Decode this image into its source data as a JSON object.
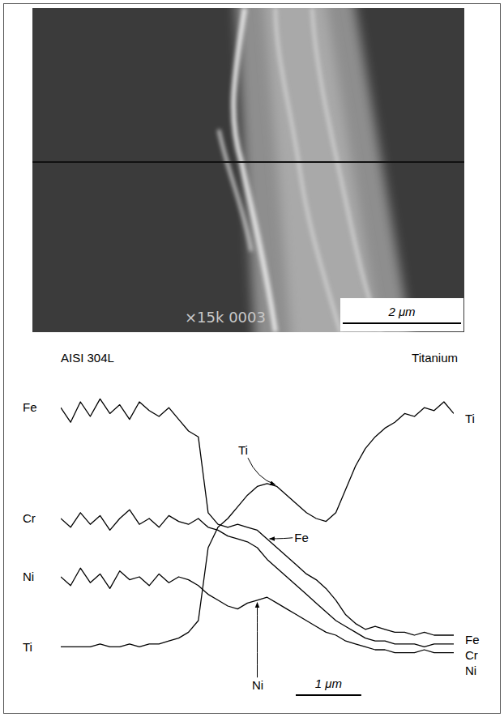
{
  "chart_data": {
    "type": "line",
    "x": [
      0,
      0.15,
      0.3,
      0.45,
      0.6,
      0.75,
      0.9,
      1.05,
      1.2,
      1.35,
      1.5,
      1.65,
      1.8,
      1.95,
      2.1,
      2.25,
      2.4,
      2.55,
      2.7,
      2.85,
      3.0,
      3.15,
      3.3,
      3.45,
      3.6,
      3.75,
      3.9,
      4.05,
      4.2,
      4.35,
      4.5,
      4.65,
      4.8,
      4.95,
      5.1,
      5.25,
      5.4,
      5.55,
      5.7,
      5.85,
      6.0
    ],
    "xlim": [
      0,
      6
    ],
    "ylim": [
      0,
      100
    ],
    "tick_labels": false,
    "series": [
      {
        "name": "Fe",
        "color": "#000000",
        "values": [
          88,
          83,
          90,
          85,
          91,
          86,
          89,
          84,
          90,
          87,
          85,
          88,
          84,
          80,
          78,
          52,
          48,
          47,
          48,
          47,
          46,
          43,
          40,
          37,
          34,
          31,
          29,
          26,
          22,
          17,
          14,
          12,
          13,
          12,
          11,
          11,
          10,
          11,
          10,
          10,
          10
        ]
      },
      {
        "name": "Cr",
        "color": "#000000",
        "values": [
          50,
          47,
          52,
          48,
          51,
          46,
          50,
          53,
          48,
          50,
          47,
          51,
          49,
          48,
          50,
          47,
          46,
          44,
          43,
          42,
          40,
          36,
          33,
          30,
          27,
          24,
          21,
          18,
          15,
          13,
          11,
          9,
          8,
          8,
          7,
          7,
          7,
          6,
          7,
          7,
          7
        ]
      },
      {
        "name": "Ni",
        "color": "#000000",
        "values": [
          30,
          27,
          33,
          28,
          31,
          26,
          32,
          29,
          30,
          27,
          31,
          28,
          30,
          29,
          27,
          24,
          22,
          20,
          19,
          21,
          22,
          23,
          21,
          19,
          17,
          15,
          13,
          11,
          10,
          8,
          7,
          6,
          5,
          5,
          4,
          4,
          4,
          5,
          4,
          4,
          4
        ]
      },
      {
        "name": "Ti",
        "color": "#000000",
        "values": [
          6,
          6,
          6,
          6,
          7,
          6,
          6,
          7,
          6,
          7,
          7,
          8,
          9,
          11,
          15,
          40,
          47,
          50,
          54,
          58,
          61,
          62,
          61,
          58,
          55,
          52,
          50,
          49,
          52,
          60,
          68,
          74,
          78,
          81,
          83,
          86,
          85,
          88,
          87,
          90,
          86
        ]
      }
    ],
    "annotations": [
      "AISI 304L",
      "Titanium"
    ],
    "scale_bar": {
      "value": 1,
      "label": "1 μm"
    }
  },
  "micrograph": {
    "label": "×15k 0003",
    "width": 7.3,
    "scale_bar": {
      "value": 2,
      "label": "2 μm"
    }
  }
}
